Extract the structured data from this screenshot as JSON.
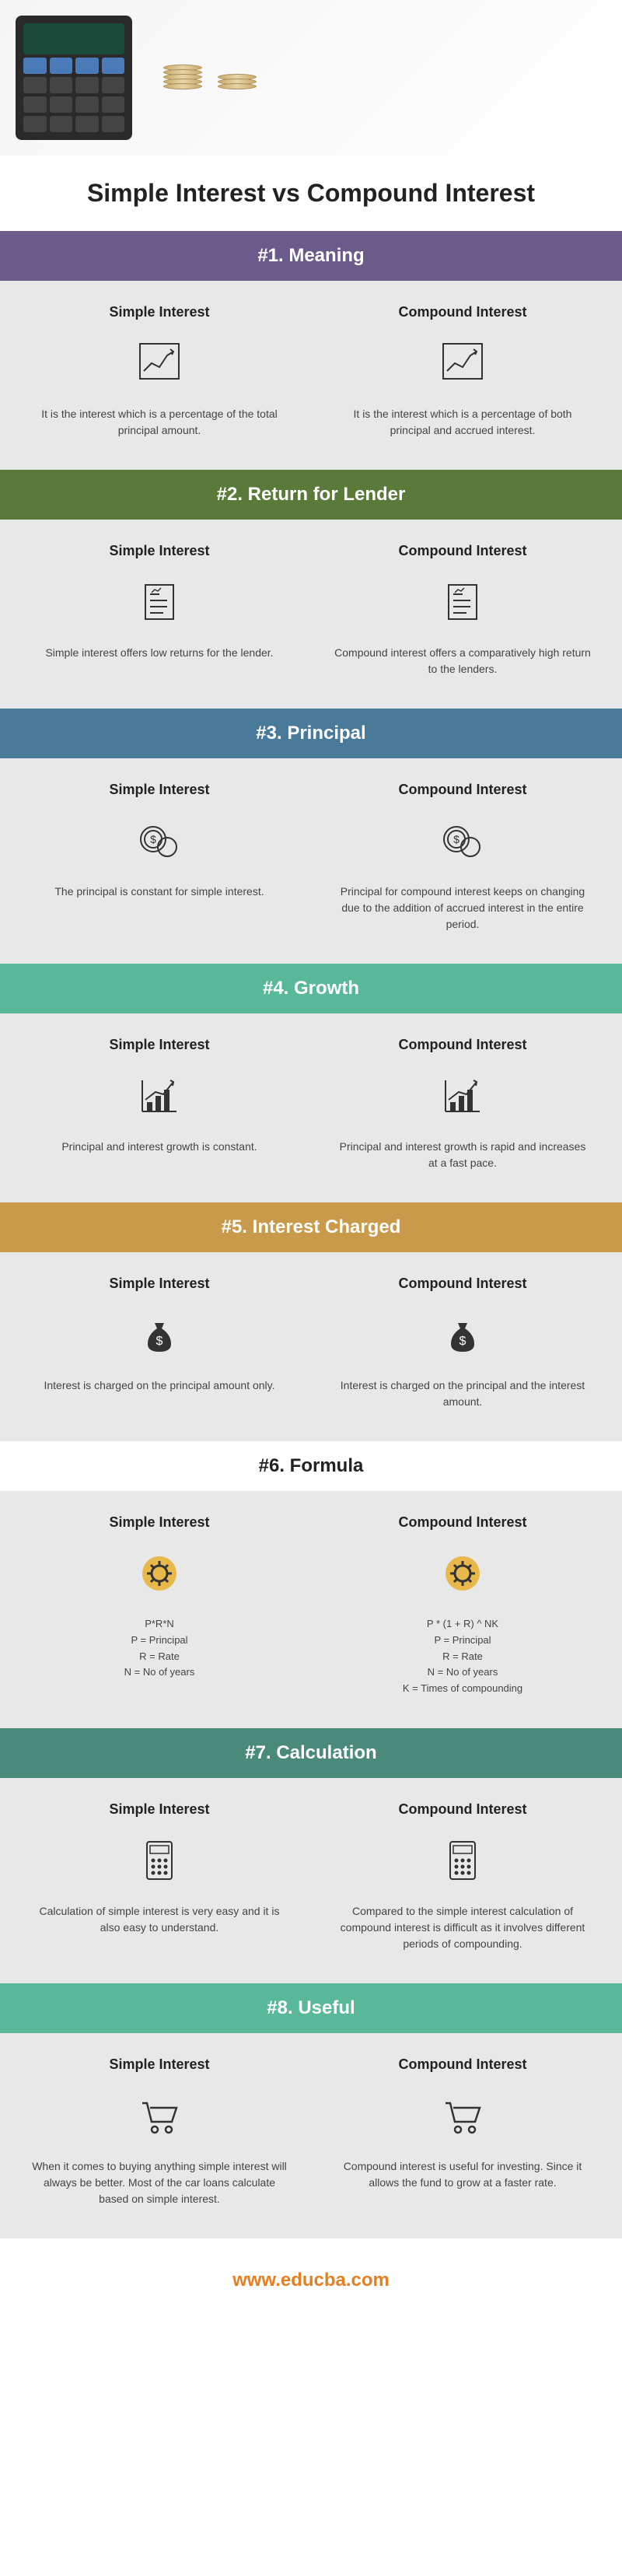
{
  "main_title": "Simple Interest vs Compound Interest",
  "footer_url": "www.educba.com",
  "col_left": "Simple Interest",
  "col_right": "Compound Interest",
  "sections": [
    {
      "title": "#1. Meaning",
      "bg": "#6b5b8a",
      "left_text": "It is the interest which is a percentage of the total principal amount.",
      "right_text": "It is the interest which is a percentage of both principal and accrued interest.",
      "icon": "chart"
    },
    {
      "title": "#2. Return for Lender",
      "bg": "#5a7a3a",
      "left_text": "Simple interest offers low returns for the lender.",
      "right_text": "Compound interest offers a comparatively high return to the lenders.",
      "icon": "document"
    },
    {
      "title": "#3. Principal",
      "bg": "#4a7a9a",
      "left_text": "The principal is constant for simple interest.",
      "right_text": "Principal for compound interest keeps on changing due to the addition of accrued interest in the entire period.",
      "icon": "coins"
    },
    {
      "title": "#4. Growth",
      "bg": "#5ab89a",
      "left_text": "Principal and interest growth is constant.",
      "right_text": "Principal and interest growth is rapid and increases at a fast pace.",
      "icon": "growth"
    },
    {
      "title": "#5. Interest Charged",
      "bg": "#c89a4a",
      "left_text": "Interest is charged on the principal amount only.",
      "right_text": "Interest is charged on the principal and the interest amount.",
      "icon": "moneybag"
    },
    {
      "title": "#6. Formula",
      "bg": "#ffffff",
      "text_color": "#222",
      "left_text": "P*R*N\nP = Principal\nR = Rate\nN = No of years",
      "right_text": "P * (1 + R) ^ NK\nP = Principal\nR = Rate\nN = No of years\nK = Times of compounding",
      "icon": "gear",
      "formula": true
    },
    {
      "title": "#7. Calculation",
      "bg": "#4a8a7a",
      "left_text": "Calculation of simple interest is very easy and it is also easy to understand.",
      "right_text": "Compared to the simple interest calculation of compound interest is difficult as it involves different periods of compounding.",
      "icon": "calculator"
    },
    {
      "title": "#8. Useful",
      "bg": "#5ab89a",
      "left_text": "When it comes to buying anything simple interest will always be better. Most of the car loans calculate based on simple interest.",
      "right_text": "Compound interest is useful for investing. Since it allows the fund to grow at a faster rate.",
      "icon": "cart"
    }
  ]
}
